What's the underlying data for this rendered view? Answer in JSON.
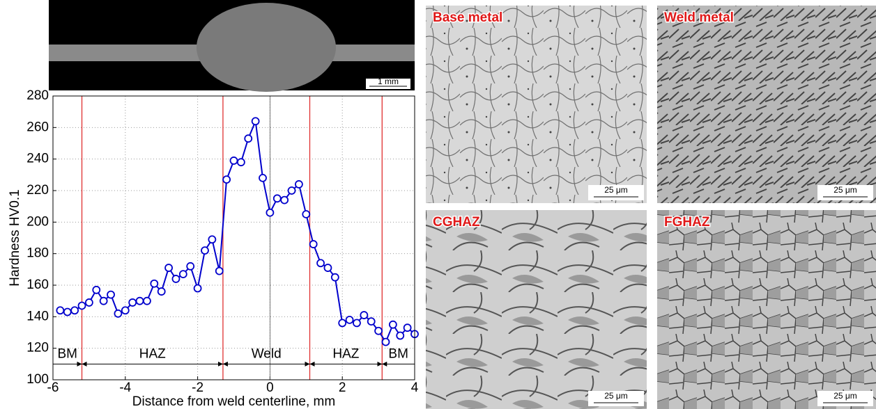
{
  "chart_data": {
    "type": "line",
    "ylabel": "Hardness HV0.1",
    "xlabel": "Distance from weld centerline, mm",
    "x": [
      -5.8,
      -5.6,
      -5.4,
      -5.2,
      -5.0,
      -4.8,
      -4.6,
      -4.4,
      -4.2,
      -4.0,
      -3.8,
      -3.6,
      -3.4,
      -3.2,
      -3.0,
      -2.8,
      -2.6,
      -2.4,
      -2.2,
      -2.0,
      -1.8,
      -1.6,
      -1.4,
      -1.2,
      -1.0,
      -0.8,
      -0.6,
      -0.4,
      -0.2,
      0.0,
      0.2,
      0.4,
      0.6,
      0.8,
      1.0,
      1.2,
      1.4,
      1.6,
      1.8,
      2.0,
      2.2,
      2.4,
      2.6,
      2.8,
      3.0,
      3.2,
      3.4,
      3.6,
      3.8,
      4.0
    ],
    "series": [
      {
        "color": "#0000cc",
        "values": [
          144,
          143,
          144,
          147,
          149,
          157,
          150,
          154,
          142,
          144,
          149,
          150,
          150,
          161,
          156,
          171,
          164,
          167,
          172,
          158,
          182,
          189,
          169,
          227,
          239,
          238,
          253,
          264,
          228,
          206,
          215,
          214,
          220,
          224,
          205,
          186,
          174,
          171,
          165,
          136,
          138,
          136,
          141,
          137,
          131,
          124,
          135,
          128,
          133,
          129
        ]
      }
    ],
    "xlim": [
      -6,
      4
    ],
    "ylim": [
      100,
      280
    ],
    "xticks": [
      -6,
      -4,
      -2,
      0,
      2,
      4
    ],
    "yticks": [
      100,
      120,
      140,
      160,
      180,
      200,
      220,
      240,
      260,
      280
    ],
    "grid": true,
    "boundaries": [
      -5.2,
      -1.3,
      1.1,
      3.1
    ],
    "boundary_color": "#e03030",
    "centerline": 0,
    "zone_y": 110,
    "zones": [
      "BM",
      "HAZ",
      "Weld",
      "HAZ",
      "BM"
    ]
  },
  "macrograph": {
    "scale": "1 mm"
  },
  "micrographs": [
    {
      "label": "Base metal",
      "scale": "25 μm"
    },
    {
      "label": "Weld metal",
      "scale": "25 μm"
    },
    {
      "label": "CGHAZ",
      "scale": "25 μm"
    },
    {
      "label": "FGHAZ",
      "scale": "25 μm"
    }
  ]
}
